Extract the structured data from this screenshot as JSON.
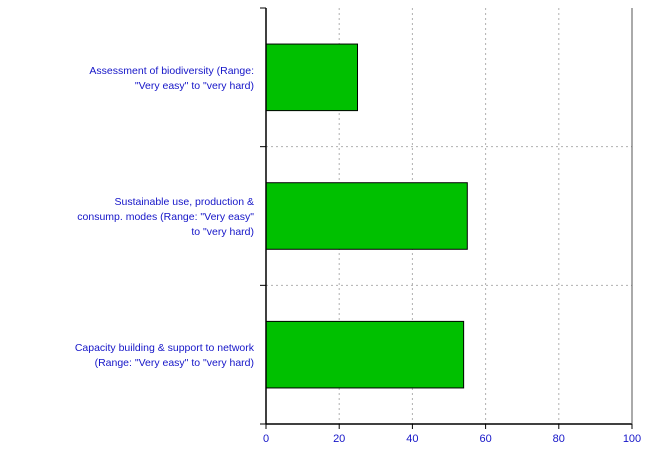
{
  "chart_data": {
    "type": "bar",
    "orientation": "horizontal",
    "categories": [
      [
        "Assessment of biodiversity (Range:",
        "\"Very easy\" to \"very hard)"
      ],
      [
        "Sustainable use, production &",
        "consump. modes (Range: \"Very easy\"",
        "to \"very hard)"
      ],
      [
        "Capacity building & support to network",
        "(Range: \"Very easy\" to \"very hard)"
      ]
    ],
    "values": [
      25,
      55,
      54
    ],
    "xlim": [
      0,
      100
    ],
    "xticks": [
      0,
      20,
      40,
      60,
      80,
      100
    ],
    "title": "",
    "xlabel": "",
    "ylabel": "",
    "grid": "vertical dotted",
    "legend": "none",
    "bar_color": "#00c000",
    "text_color": "#1515c8"
  }
}
